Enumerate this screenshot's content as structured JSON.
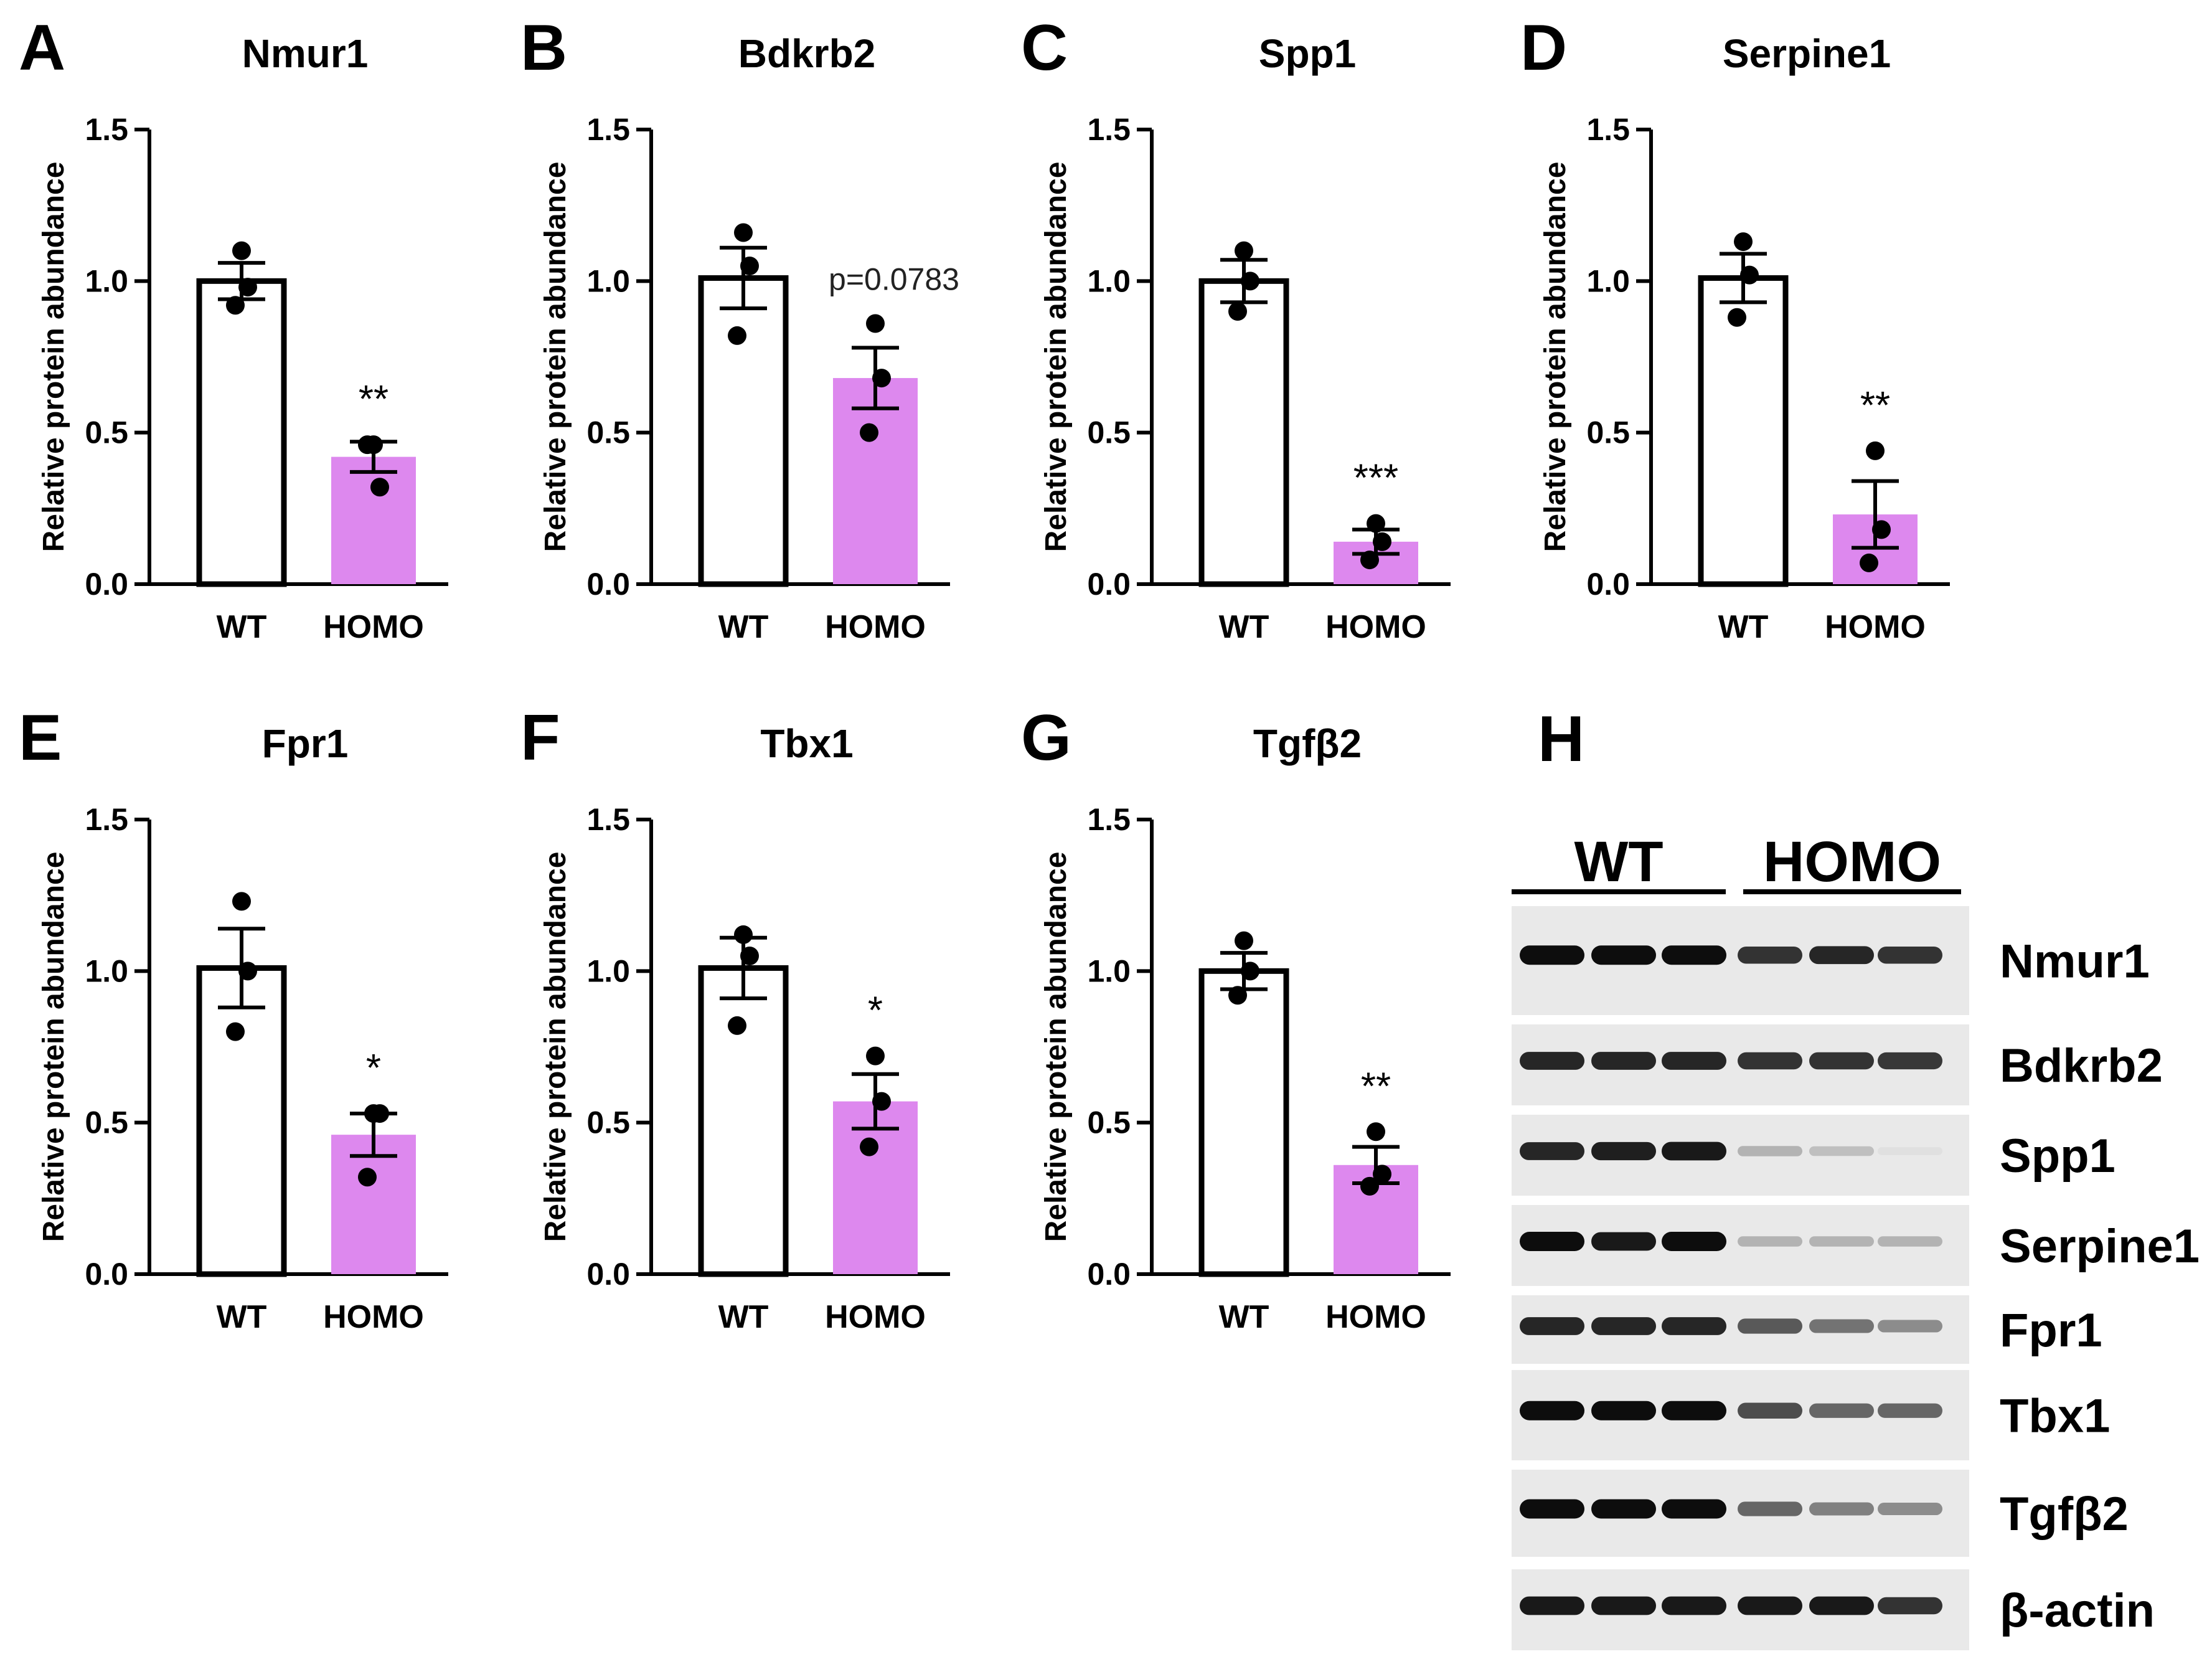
{
  "chart_data": [
    {
      "panel": "A",
      "type": "bar",
      "title": "Nmur1",
      "ylabel": "Relative protein abundance",
      "ylim": [
        0,
        1.5
      ],
      "yticks": [
        "0.0",
        "0.5",
        "1.0",
        "1.5"
      ],
      "categories": [
        "WT",
        "HOMO"
      ],
      "values": [
        1.0,
        0.42
      ],
      "errors": [
        0.06,
        0.05
      ],
      "points": [
        [
          1.1,
          0.92,
          0.98
        ],
        [
          0.46,
          0.46,
          0.32
        ]
      ],
      "significance": [
        "",
        "**"
      ],
      "colors": [
        "#ffffff",
        "#dd88ee"
      ]
    },
    {
      "panel": "B",
      "type": "bar",
      "title": "Bdkrb2",
      "ylabel": "Relative protein abundance",
      "ylim": [
        0,
        1.5
      ],
      "yticks": [
        "0.0",
        "0.5",
        "1.0",
        "1.5"
      ],
      "categories": [
        "WT",
        "HOMO"
      ],
      "values": [
        1.01,
        0.68
      ],
      "errors": [
        0.1,
        0.1
      ],
      "points": [
        [
          1.16,
          0.82,
          1.05
        ],
        [
          0.86,
          0.5,
          0.68
        ]
      ],
      "significance": [
        "",
        "p=0.0783"
      ],
      "colors": [
        "#ffffff",
        "#dd88ee"
      ]
    },
    {
      "panel": "C",
      "type": "bar",
      "title": "Spp1",
      "ylabel": "Relative protein abundance",
      "ylim": [
        0,
        1.5
      ],
      "yticks": [
        "0.0",
        "0.5",
        "1.0",
        "1.5"
      ],
      "categories": [
        "WT",
        "HOMO"
      ],
      "values": [
        1.0,
        0.14
      ],
      "errors": [
        0.07,
        0.04
      ],
      "points": [
        [
          1.1,
          0.9,
          1.0
        ],
        [
          0.2,
          0.08,
          0.14
        ]
      ],
      "significance": [
        "",
        "***"
      ],
      "colors": [
        "#ffffff",
        "#dd88ee"
      ]
    },
    {
      "panel": "D",
      "type": "bar",
      "title": "Serpine1",
      "ylabel": "Relative protein abundance",
      "ylim": [
        0,
        1.5
      ],
      "yticks": [
        "0.0",
        "0.5",
        "1.0",
        "1.5"
      ],
      "categories": [
        "WT",
        "HOMO"
      ],
      "values": [
        1.01,
        0.23
      ],
      "errors": [
        0.08,
        0.11
      ],
      "points": [
        [
          1.13,
          0.88,
          1.02
        ],
        [
          0.44,
          0.07,
          0.18
        ]
      ],
      "significance": [
        "",
        "**"
      ],
      "colors": [
        "#ffffff",
        "#dd88ee"
      ]
    },
    {
      "panel": "E",
      "type": "bar",
      "title": "Fpr1",
      "ylabel": "Relative protein abundance",
      "ylim": [
        0,
        1.5
      ],
      "yticks": [
        "0.0",
        "0.5",
        "1.0",
        "1.5"
      ],
      "categories": [
        "WT",
        "HOMO"
      ],
      "values": [
        1.01,
        0.46
      ],
      "errors": [
        0.13,
        0.07
      ],
      "points": [
        [
          1.23,
          0.8,
          1.0
        ],
        [
          0.53,
          0.32,
          0.53
        ]
      ],
      "significance": [
        "",
        "*"
      ],
      "colors": [
        "#ffffff",
        "#dd88ee"
      ]
    },
    {
      "panel": "F",
      "type": "bar",
      "title": "Tbx1",
      "ylabel": "Relative protein abundance",
      "ylim": [
        0,
        1.5
      ],
      "yticks": [
        "0.0",
        "0.5",
        "1.0",
        "1.5"
      ],
      "categories": [
        "WT",
        "HOMO"
      ],
      "values": [
        1.01,
        0.57
      ],
      "errors": [
        0.1,
        0.09
      ],
      "points": [
        [
          1.12,
          0.82,
          1.05
        ],
        [
          0.72,
          0.42,
          0.57
        ]
      ],
      "significance": [
        "",
        "*"
      ],
      "colors": [
        "#ffffff",
        "#dd88ee"
      ]
    },
    {
      "panel": "G",
      "type": "bar",
      "title": "Tgfβ2",
      "ylabel": "Relative protein abundance",
      "ylim": [
        0,
        1.5
      ],
      "yticks": [
        "0.0",
        "0.5",
        "1.0",
        "1.5"
      ],
      "categories": [
        "WT",
        "HOMO"
      ],
      "values": [
        1.0,
        0.36
      ],
      "errors": [
        0.06,
        0.06
      ],
      "points": [
        [
          1.1,
          0.92,
          1.0
        ],
        [
          0.47,
          0.29,
          0.33
        ]
      ],
      "significance": [
        "",
        "**"
      ],
      "colors": [
        "#ffffff",
        "#dd88ee"
      ]
    }
  ],
  "blot": {
    "panel": "H",
    "groups": [
      "WT",
      "HOMO"
    ],
    "rows": [
      {
        "label": "Nmur1",
        "intensities": [
          0.95,
          0.95,
          0.95,
          0.8,
          0.85,
          0.8
        ]
      },
      {
        "label": "Bdkrb2",
        "intensities": [
          0.85,
          0.85,
          0.85,
          0.8,
          0.8,
          0.78
        ]
      },
      {
        "label": "Spp1",
        "intensities": [
          0.85,
          0.88,
          0.9,
          0.3,
          0.25,
          0.12
        ]
      },
      {
        "label": "Serpine1",
        "intensities": [
          0.95,
          0.9,
          0.95,
          0.3,
          0.3,
          0.3
        ]
      },
      {
        "label": "Fpr1",
        "intensities": [
          0.85,
          0.85,
          0.85,
          0.65,
          0.55,
          0.45
        ]
      },
      {
        "label": "Tbx1",
        "intensities": [
          0.95,
          0.95,
          0.95,
          0.7,
          0.6,
          0.6
        ]
      },
      {
        "label": "Tgfβ2",
        "intensities": [
          0.95,
          0.95,
          0.95,
          0.6,
          0.5,
          0.45
        ]
      },
      {
        "label": "β-actin",
        "intensities": [
          0.9,
          0.9,
          0.9,
          0.9,
          0.9,
          0.8
        ]
      }
    ]
  }
}
